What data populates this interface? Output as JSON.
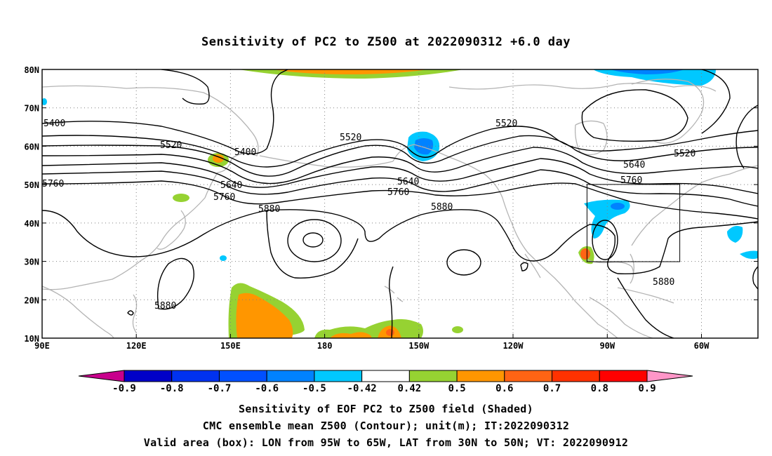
{
  "title": "Sensitivity of PC2 to Z500 at 2022090312 +6.0 day",
  "map": {
    "lat_ticks": [
      "80N",
      "70N",
      "60N",
      "50N",
      "40N",
      "30N",
      "20N",
      "10N"
    ],
    "lon_ticks": [
      "90E",
      "120E",
      "150E",
      "180",
      "150W",
      "120W",
      "90W",
      "60W"
    ],
    "grid": "dotted",
    "coastline_color": "#b4b4b4",
    "contour_color": "#000000",
    "box_label": "Valid area"
  },
  "contour_labels": [
    {
      "text": "5400"
    },
    {
      "text": "5400"
    },
    {
      "text": "5520"
    },
    {
      "text": "5520"
    },
    {
      "text": "5520"
    },
    {
      "text": "5520"
    },
    {
      "text": "5640"
    },
    {
      "text": "5640"
    },
    {
      "text": "5640"
    },
    {
      "text": "5760"
    },
    {
      "text": "5760"
    },
    {
      "text": "5760"
    },
    {
      "text": "5760"
    },
    {
      "text": "5880"
    },
    {
      "text": "5880"
    },
    {
      "text": "5880"
    },
    {
      "text": "5880"
    }
  ],
  "colorbar": {
    "labels": [
      "-0.9",
      "-0.8",
      "-0.7",
      "-0.6",
      "-0.5",
      "-0.42",
      "0.42",
      "0.5",
      "0.6",
      "0.7",
      "0.8",
      "0.9"
    ],
    "colors": [
      "#0000c8",
      "#0032f0",
      "#0050ff",
      "#0082ff",
      "#00c8ff",
      "#ffffff",
      "#96d232",
      "#ff9600",
      "#ff6414",
      "#ff3200",
      "#ff0000"
    ],
    "low_cap_color": "#c8008c",
    "high_cap_color": "#ff96c8"
  },
  "footer": {
    "line1": "Sensitivity of EOF PC2 to Z500 field (Shaded)",
    "line2": "CMC ensemble mean Z500 (Contour); unit(m); IT:2022090312",
    "line3": "Valid area (box): LON from 95W to 65W, LAT from 30N to 50N; VT: 2022090912"
  }
}
